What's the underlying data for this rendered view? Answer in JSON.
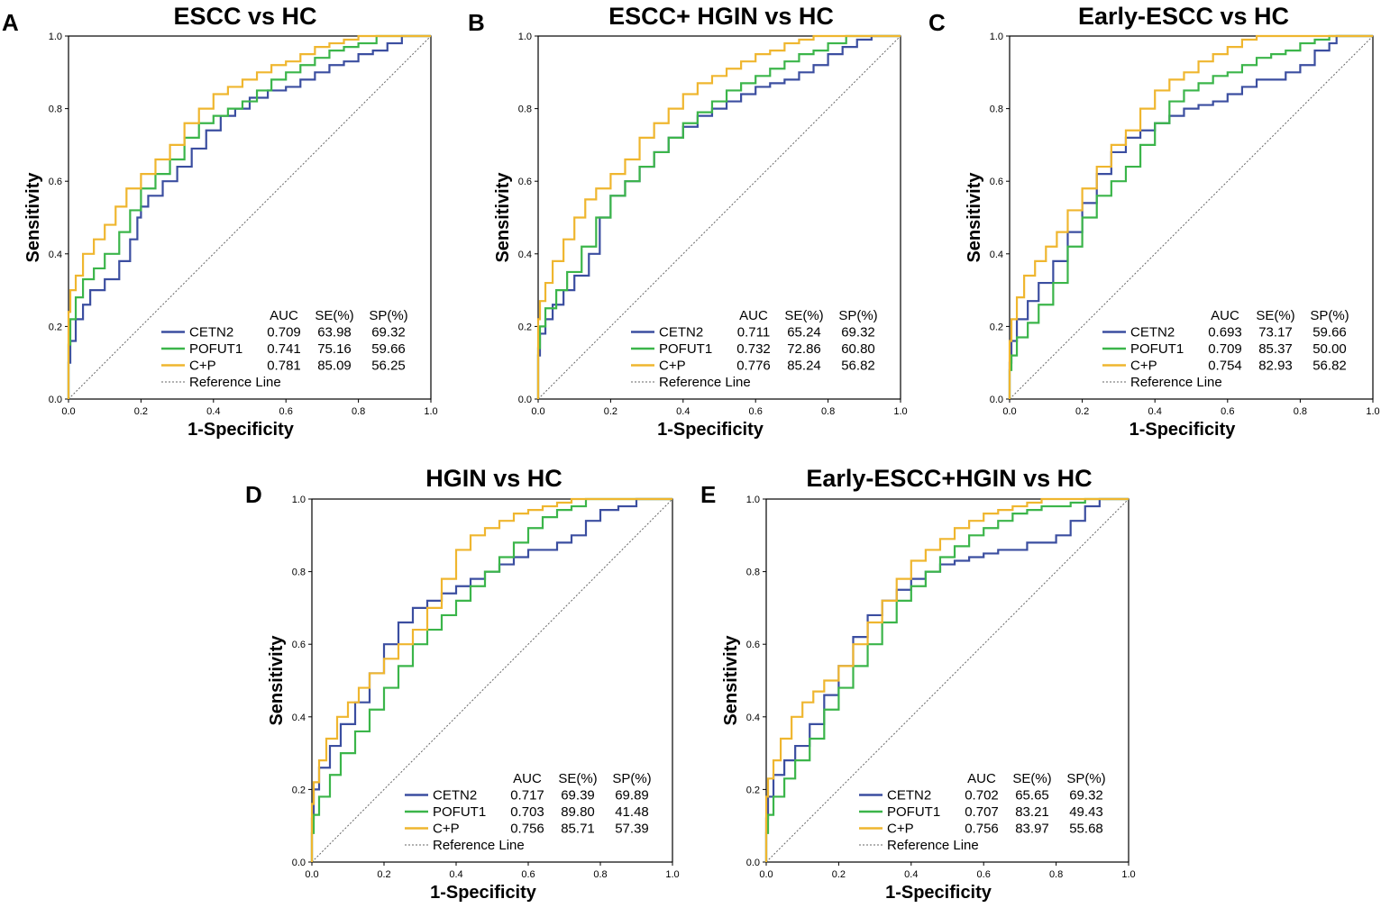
{
  "colors": {
    "CETN2": "#3b4ea0",
    "POFUT1": "#3bb54a",
    "C+P": "#efb62f",
    "reference": "#666666"
  },
  "stats_headers": [
    "AUC",
    "SE(%)",
    "SP(%)"
  ],
  "chart_data": [
    {
      "type": "line",
      "panel": "A",
      "title": "ESCC vs HC",
      "xlabel": "1-Specificity",
      "ylabel": "Sensitivity",
      "xlim": [
        0,
        1
      ],
      "ylim": [
        0,
        1
      ],
      "ticks": [
        "0.0",
        "0.2",
        "0.4",
        "0.6",
        "0.8",
        "1.0"
      ],
      "reference_label": "Reference Line",
      "series": [
        {
          "name": "CETN2",
          "auc": "0.709",
          "se": "63.98",
          "sp": "69.32",
          "x": [
            0,
            0.005,
            0.02,
            0.04,
            0.06,
            0.1,
            0.14,
            0.17,
            0.19,
            0.2,
            0.22,
            0.26,
            0.3,
            0.34,
            0.38,
            0.42,
            0.46,
            0.5,
            0.55,
            0.6,
            0.64,
            0.68,
            0.72,
            0.76,
            0.8,
            0.84,
            0.88,
            0.92,
            1
          ],
          "y": [
            0,
            0.1,
            0.16,
            0.22,
            0.26,
            0.3,
            0.33,
            0.38,
            0.44,
            0.5,
            0.53,
            0.56,
            0.6,
            0.64,
            0.69,
            0.74,
            0.78,
            0.8,
            0.83,
            0.85,
            0.86,
            0.88,
            0.9,
            0.92,
            0.93,
            0.95,
            0.96,
            0.98,
            1
          ]
        },
        {
          "name": "POFUT1",
          "auc": "0.741",
          "se": "75.16",
          "sp": "59.66",
          "x": [
            0,
            0.005,
            0.02,
            0.04,
            0.07,
            0.1,
            0.14,
            0.17,
            0.2,
            0.24,
            0.28,
            0.32,
            0.36,
            0.4,
            0.44,
            0.48,
            0.52,
            0.56,
            0.6,
            0.64,
            0.68,
            0.72,
            0.76,
            0.8,
            0.85,
            0.9,
            1
          ],
          "y": [
            0,
            0.15,
            0.22,
            0.28,
            0.33,
            0.36,
            0.4,
            0.46,
            0.52,
            0.58,
            0.62,
            0.66,
            0.72,
            0.76,
            0.78,
            0.8,
            0.82,
            0.85,
            0.88,
            0.9,
            0.92,
            0.94,
            0.96,
            0.97,
            0.98,
            1,
            1
          ]
        },
        {
          "name": "C+P",
          "auc": "0.781",
          "se": "85.09",
          "sp": "56.25",
          "x": [
            0,
            0.005,
            0.02,
            0.04,
            0.07,
            0.1,
            0.13,
            0.16,
            0.2,
            0.24,
            0.28,
            0.32,
            0.36,
            0.4,
            0.44,
            0.48,
            0.52,
            0.56,
            0.6,
            0.64,
            0.68,
            0.72,
            0.76,
            0.8,
            0.84,
            0.88,
            0.92,
            1
          ],
          "y": [
            0,
            0.24,
            0.3,
            0.34,
            0.4,
            0.44,
            0.48,
            0.53,
            0.58,
            0.62,
            0.66,
            0.7,
            0.76,
            0.8,
            0.84,
            0.86,
            0.88,
            0.9,
            0.92,
            0.93,
            0.95,
            0.97,
            0.98,
            0.99,
            1,
            1,
            1,
            1
          ]
        }
      ]
    },
    {
      "type": "line",
      "panel": "B",
      "title": "ESCC+ HGIN vs HC",
      "xlabel": "1-Specificity",
      "ylabel": "Sensitivity",
      "xlim": [
        0,
        1
      ],
      "ylim": [
        0,
        1
      ],
      "ticks": [
        "0.0",
        "0.2",
        "0.4",
        "0.6",
        "0.8",
        "1.0"
      ],
      "reference_label": "Reference Line",
      "series": [
        {
          "name": "CETN2",
          "auc": "0.711",
          "se": "65.24",
          "sp": "69.32",
          "x": [
            0,
            0.005,
            0.02,
            0.04,
            0.07,
            0.1,
            0.14,
            0.17,
            0.2,
            0.24,
            0.28,
            0.32,
            0.36,
            0.4,
            0.44,
            0.48,
            0.52,
            0.56,
            0.6,
            0.64,
            0.68,
            0.72,
            0.76,
            0.8,
            0.84,
            0.88,
            0.92,
            1
          ],
          "y": [
            0,
            0.12,
            0.18,
            0.22,
            0.26,
            0.3,
            0.34,
            0.4,
            0.5,
            0.56,
            0.6,
            0.64,
            0.68,
            0.72,
            0.75,
            0.78,
            0.8,
            0.82,
            0.84,
            0.86,
            0.87,
            0.88,
            0.9,
            0.92,
            0.95,
            0.97,
            0.99,
            1
          ]
        },
        {
          "name": "POFUT1",
          "auc": "0.732",
          "se": "72.86",
          "sp": "60.80",
          "x": [
            0,
            0.005,
            0.02,
            0.05,
            0.08,
            0.12,
            0.16,
            0.2,
            0.24,
            0.28,
            0.32,
            0.36,
            0.4,
            0.44,
            0.48,
            0.52,
            0.56,
            0.6,
            0.64,
            0.68,
            0.72,
            0.76,
            0.8,
            0.85,
            0.9,
            1
          ],
          "y": [
            0,
            0.14,
            0.2,
            0.25,
            0.3,
            0.35,
            0.42,
            0.5,
            0.56,
            0.6,
            0.64,
            0.68,
            0.72,
            0.76,
            0.79,
            0.82,
            0.85,
            0.87,
            0.89,
            0.91,
            0.93,
            0.95,
            0.96,
            0.98,
            1,
            1
          ]
        },
        {
          "name": "C+P",
          "auc": "0.776",
          "se": "85.24",
          "sp": "56.82",
          "x": [
            0,
            0.005,
            0.02,
            0.04,
            0.07,
            0.1,
            0.13,
            0.16,
            0.2,
            0.24,
            0.28,
            0.32,
            0.36,
            0.4,
            0.44,
            0.48,
            0.52,
            0.56,
            0.6,
            0.64,
            0.68,
            0.72,
            0.76,
            0.8,
            0.84,
            0.88,
            1
          ],
          "y": [
            0,
            0.22,
            0.27,
            0.32,
            0.38,
            0.44,
            0.5,
            0.55,
            0.58,
            0.62,
            0.66,
            0.72,
            0.76,
            0.8,
            0.84,
            0.87,
            0.89,
            0.91,
            0.93,
            0.95,
            0.96,
            0.98,
            0.99,
            1,
            1,
            1,
            1
          ]
        }
      ]
    },
    {
      "type": "line",
      "panel": "C",
      "title": "Early-ESCC vs HC",
      "xlabel": "1-Specificity",
      "ylabel": "Sensitivity",
      "xlim": [
        0,
        1
      ],
      "ylim": [
        0,
        1
      ],
      "ticks": [
        "0.0",
        "0.2",
        "0.4",
        "0.6",
        "0.8",
        "1.0"
      ],
      "reference_label": "Reference Line",
      "series": [
        {
          "name": "CETN2",
          "auc": "0.693",
          "se": "73.17",
          "sp": "59.66",
          "x": [
            0,
            0.005,
            0.02,
            0.05,
            0.08,
            0.12,
            0.16,
            0.2,
            0.24,
            0.28,
            0.32,
            0.36,
            0.4,
            0.44,
            0.48,
            0.52,
            0.56,
            0.6,
            0.64,
            0.68,
            0.72,
            0.76,
            0.8,
            0.84,
            0.88,
            0.9,
            1
          ],
          "y": [
            0,
            0.1,
            0.16,
            0.22,
            0.27,
            0.32,
            0.38,
            0.46,
            0.54,
            0.62,
            0.68,
            0.72,
            0.74,
            0.76,
            0.78,
            0.8,
            0.81,
            0.82,
            0.84,
            0.86,
            0.88,
            0.88,
            0.9,
            0.92,
            0.96,
            0.98,
            1
          ]
        },
        {
          "name": "POFUT1",
          "auc": "0.709",
          "se": "85.37",
          "sp": "50.00",
          "x": [
            0,
            0.005,
            0.02,
            0.05,
            0.08,
            0.12,
            0.16,
            0.2,
            0.24,
            0.28,
            0.32,
            0.36,
            0.4,
            0.44,
            0.48,
            0.52,
            0.56,
            0.6,
            0.64,
            0.68,
            0.72,
            0.76,
            0.8,
            0.84,
            0.88,
            0.91,
            1
          ],
          "y": [
            0,
            0.08,
            0.12,
            0.17,
            0.21,
            0.26,
            0.32,
            0.42,
            0.5,
            0.56,
            0.6,
            0.64,
            0.7,
            0.76,
            0.82,
            0.85,
            0.87,
            0.89,
            0.9,
            0.92,
            0.94,
            0.95,
            0.96,
            0.98,
            0.99,
            1,
            1
          ]
        },
        {
          "name": "C+P",
          "auc": "0.754",
          "se": "82.93",
          "sp": "56.82",
          "x": [
            0,
            0.005,
            0.02,
            0.04,
            0.07,
            0.1,
            0.13,
            0.16,
            0.2,
            0.24,
            0.28,
            0.32,
            0.36,
            0.4,
            0.44,
            0.48,
            0.52,
            0.56,
            0.6,
            0.64,
            0.68,
            0.72,
            0.76,
            0.8,
            1
          ],
          "y": [
            0,
            0.16,
            0.22,
            0.28,
            0.34,
            0.38,
            0.42,
            0.46,
            0.52,
            0.58,
            0.64,
            0.7,
            0.74,
            0.8,
            0.85,
            0.88,
            0.9,
            0.93,
            0.95,
            0.97,
            0.99,
            1,
            1,
            1,
            1
          ]
        }
      ]
    },
    {
      "type": "line",
      "panel": "D",
      "title": "HGIN vs HC",
      "xlabel": "1-Specificity",
      "ylabel": "Sensitivity",
      "xlim": [
        0,
        1
      ],
      "ylim": [
        0,
        1
      ],
      "ticks": [
        "0.0",
        "0.2",
        "0.4",
        "0.6",
        "0.8",
        "1.0"
      ],
      "reference_label": "Reference Line",
      "series": [
        {
          "name": "CETN2",
          "auc": "0.717",
          "se": "69.39",
          "sp": "69.89",
          "x": [
            0,
            0.005,
            0.02,
            0.05,
            0.08,
            0.12,
            0.16,
            0.2,
            0.24,
            0.28,
            0.32,
            0.36,
            0.4,
            0.44,
            0.48,
            0.52,
            0.56,
            0.6,
            0.64,
            0.68,
            0.72,
            0.76,
            0.8,
            0.85,
            0.9,
            0.94,
            1
          ],
          "y": [
            0,
            0.12,
            0.2,
            0.26,
            0.32,
            0.38,
            0.44,
            0.52,
            0.6,
            0.66,
            0.7,
            0.72,
            0.74,
            0.76,
            0.78,
            0.8,
            0.82,
            0.84,
            0.86,
            0.86,
            0.88,
            0.9,
            0.94,
            0.97,
            0.98,
            1,
            1
          ]
        },
        {
          "name": "POFUT1",
          "auc": "0.703",
          "se": "89.80",
          "sp": "41.48",
          "x": [
            0,
            0.005,
            0.02,
            0.05,
            0.08,
            0.12,
            0.16,
            0.2,
            0.24,
            0.28,
            0.32,
            0.36,
            0.4,
            0.44,
            0.48,
            0.52,
            0.56,
            0.6,
            0.64,
            0.68,
            0.72,
            0.76,
            0.8,
            0.85,
            1
          ],
          "y": [
            0,
            0.08,
            0.13,
            0.18,
            0.24,
            0.3,
            0.36,
            0.42,
            0.48,
            0.54,
            0.6,
            0.64,
            0.68,
            0.72,
            0.76,
            0.8,
            0.84,
            0.88,
            0.92,
            0.95,
            0.97,
            0.98,
            1,
            1,
            1
          ]
        },
        {
          "name": "C+P",
          "auc": "0.756",
          "se": "85.71",
          "sp": "57.39",
          "x": [
            0,
            0.005,
            0.02,
            0.04,
            0.07,
            0.1,
            0.13,
            0.16,
            0.2,
            0.24,
            0.28,
            0.32,
            0.36,
            0.4,
            0.44,
            0.48,
            0.52,
            0.56,
            0.6,
            0.64,
            0.68,
            0.72,
            0.76,
            0.8,
            1
          ],
          "y": [
            0,
            0.16,
            0.22,
            0.28,
            0.34,
            0.4,
            0.44,
            0.48,
            0.52,
            0.56,
            0.6,
            0.64,
            0.7,
            0.78,
            0.86,
            0.9,
            0.92,
            0.94,
            0.96,
            0.97,
            0.98,
            0.99,
            1,
            1,
            1
          ]
        }
      ]
    },
    {
      "type": "line",
      "panel": "E",
      "title": "Early-ESCC+HGIN vs HC",
      "xlabel": "1-Specificity",
      "ylabel": "Sensitivity",
      "xlim": [
        0,
        1
      ],
      "ylim": [
        0,
        1
      ],
      "ticks": [
        "0.0",
        "0.2",
        "0.4",
        "0.6",
        "0.8",
        "1.0"
      ],
      "reference_label": "Reference Line",
      "series": [
        {
          "name": "CETN2",
          "auc": "0.702",
          "se": "65.65",
          "sp": "69.32",
          "x": [
            0,
            0.005,
            0.02,
            0.05,
            0.08,
            0.12,
            0.16,
            0.2,
            0.24,
            0.28,
            0.32,
            0.36,
            0.4,
            0.44,
            0.48,
            0.52,
            0.56,
            0.6,
            0.64,
            0.68,
            0.72,
            0.76,
            0.8,
            0.84,
            0.88,
            0.92,
            1
          ],
          "y": [
            0,
            0.12,
            0.18,
            0.24,
            0.28,
            0.32,
            0.38,
            0.46,
            0.54,
            0.62,
            0.68,
            0.72,
            0.75,
            0.78,
            0.8,
            0.82,
            0.83,
            0.84,
            0.85,
            0.86,
            0.86,
            0.88,
            0.88,
            0.9,
            0.94,
            0.98,
            1
          ]
        },
        {
          "name": "POFUT1",
          "auc": "0.707",
          "se": "83.21",
          "sp": "49.43",
          "x": [
            0,
            0.005,
            0.02,
            0.05,
            0.08,
            0.12,
            0.16,
            0.2,
            0.24,
            0.28,
            0.32,
            0.36,
            0.4,
            0.44,
            0.48,
            0.52,
            0.56,
            0.6,
            0.64,
            0.68,
            0.72,
            0.76,
            0.8,
            0.84,
            0.88,
            0.92,
            1
          ],
          "y": [
            0,
            0.08,
            0.13,
            0.18,
            0.23,
            0.28,
            0.34,
            0.42,
            0.48,
            0.54,
            0.6,
            0.66,
            0.72,
            0.76,
            0.8,
            0.84,
            0.87,
            0.9,
            0.92,
            0.94,
            0.96,
            0.97,
            0.98,
            0.98,
            0.99,
            1,
            1
          ]
        },
        {
          "name": "C+P",
          "auc": "0.756",
          "se": "83.97",
          "sp": "55.68",
          "x": [
            0,
            0.005,
            0.02,
            0.04,
            0.07,
            0.1,
            0.13,
            0.16,
            0.2,
            0.24,
            0.28,
            0.32,
            0.36,
            0.4,
            0.44,
            0.48,
            0.52,
            0.56,
            0.6,
            0.64,
            0.68,
            0.72,
            0.76,
            0.8,
            0.84,
            1
          ],
          "y": [
            0,
            0.18,
            0.23,
            0.28,
            0.34,
            0.4,
            0.44,
            0.47,
            0.5,
            0.54,
            0.6,
            0.66,
            0.72,
            0.78,
            0.83,
            0.86,
            0.89,
            0.92,
            0.94,
            0.96,
            0.97,
            0.98,
            0.99,
            1,
            1,
            1
          ]
        }
      ]
    }
  ]
}
